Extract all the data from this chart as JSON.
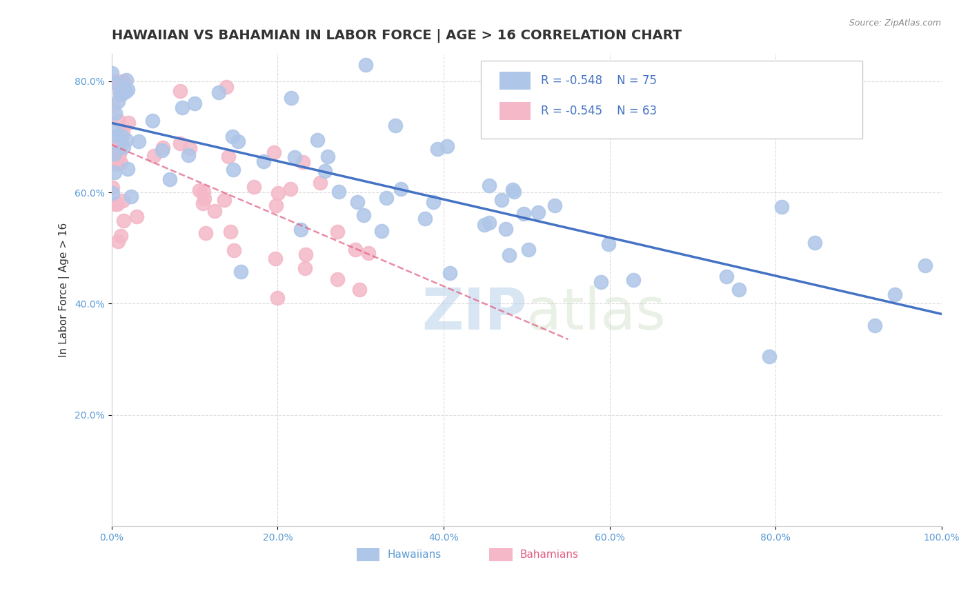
{
  "title": "HAWAIIAN VS BAHAMIAN IN LABOR FORCE | AGE > 16 CORRELATION CHART",
  "source": "Source: ZipAtlas.com",
  "ylabel": "In Labor Force | Age > 16",
  "xlim": [
    0.0,
    1.0
  ],
  "ylim": [
    0.0,
    0.85
  ],
  "xticks": [
    0.0,
    0.2,
    0.4,
    0.6,
    0.8,
    1.0
  ],
  "yticks": [
    0.2,
    0.4,
    0.6,
    0.8
  ],
  "xtick_labels": [
    "0.0%",
    "20.0%",
    "40.0%",
    "60.0%",
    "80.0%",
    "100.0%"
  ],
  "ytick_labels": [
    "20.0%",
    "40.0%",
    "60.0%",
    "80.0%"
  ],
  "hawaiian_color": "#aec6e8",
  "bahamian_color": "#f4b8c8",
  "hawaiian_line_color": "#4472c4",
  "bahamian_line_color": "#e05c80",
  "legend_R_hawaiian": "-0.548",
  "legend_N_hawaiian": "75",
  "legend_R_bahamian": "-0.545",
  "legend_N_bahamian": "63",
  "watermark_zip": "ZIP",
  "watermark_atlas": "atlas",
  "hawaiian_seed": 42,
  "bahamian_seed": 7,
  "title_fontsize": 14,
  "axis_label_fontsize": 11,
  "tick_fontsize": 10,
  "legend_fontsize": 12
}
